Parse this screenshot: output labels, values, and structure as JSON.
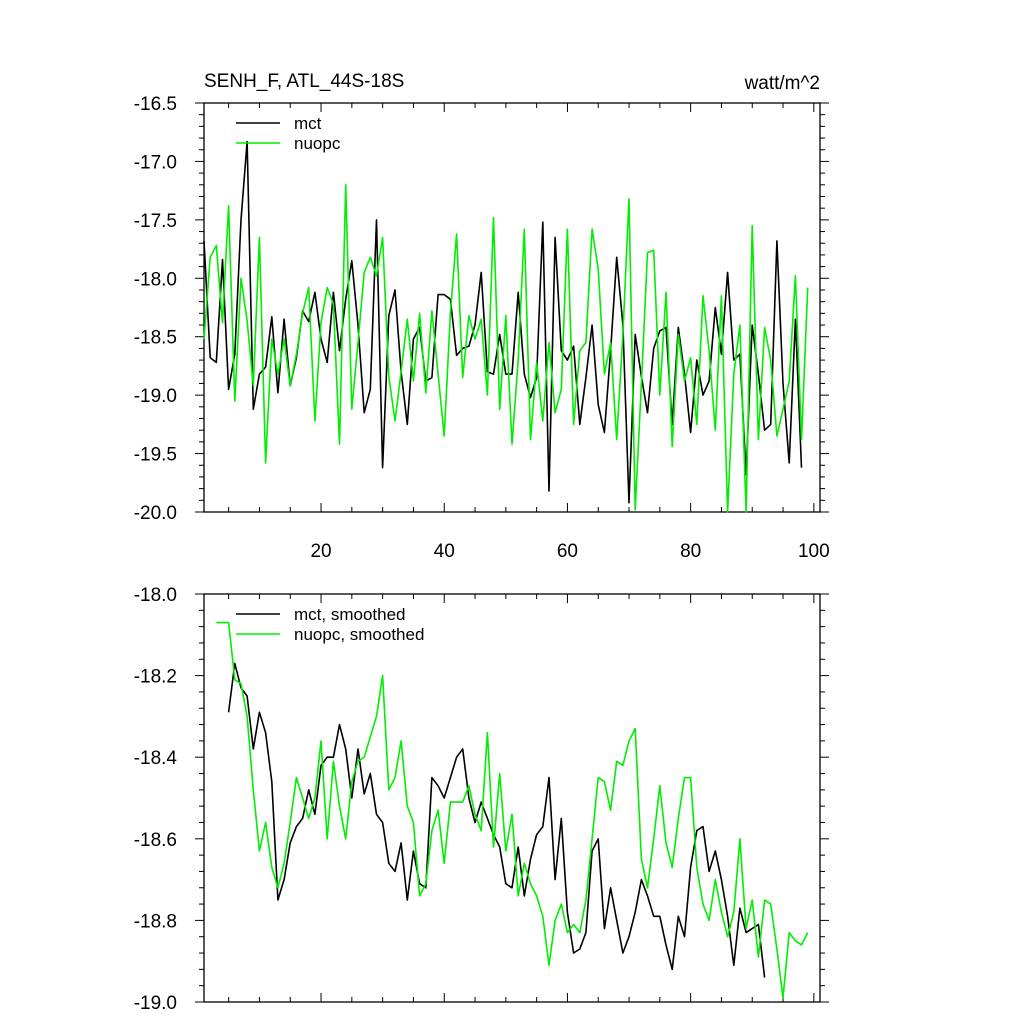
{
  "chart_data": [
    {
      "type": "line",
      "title": "SENH_F, ATL_44S-18S",
      "units": "watt/m^2",
      "xlim": [
        1,
        101
      ],
      "ylim": [
        -20.0,
        -16.5
      ],
      "yticks": [
        "-16.5",
        "-17.0",
        "-17.5",
        "-18.0",
        "-18.5",
        "-19.0",
        "-19.5",
        "-20.0"
      ],
      "xticks": [
        "20",
        "40",
        "60",
        "80",
        "100"
      ],
      "legend_position": "top-left",
      "series": [
        {
          "name": "mct",
          "color": "#000000",
          "x_start": 1,
          "values": [
            -17.68,
            -18.68,
            -18.72,
            -17.84,
            -18.95,
            -18.65,
            -17.5,
            -16.83,
            -19.12,
            -18.82,
            -18.76,
            -18.33,
            -18.98,
            -18.35,
            -18.92,
            -18.68,
            -18.28,
            -18.37,
            -18.12,
            -18.52,
            -18.72,
            -18.12,
            -18.62,
            -18.18,
            -17.85,
            -18.4,
            -19.15,
            -18.95,
            -17.5,
            -19.62,
            -18.32,
            -18.1,
            -18.8,
            -19.25,
            -18.52,
            -18.42,
            -18.88,
            -18.85,
            -18.14,
            -18.14,
            -18.18,
            -18.66,
            -18.6,
            -18.58,
            -18.4,
            -17.95,
            -18.8,
            -18.82,
            -18.48,
            -18.82,
            -18.82,
            -18.12,
            -18.82,
            -19.02,
            -18.85,
            -17.52,
            -19.82,
            -17.65,
            -18.62,
            -18.7,
            -18.58,
            -19.25,
            -18.85,
            -18.4,
            -19.08,
            -19.32,
            -18.62,
            -17.82,
            -18.4,
            -19.92,
            -18.48,
            -18.84,
            -19.15,
            -18.6,
            -18.45,
            -18.42,
            -19.25,
            -18.42,
            -18.82,
            -19.32,
            -18.7,
            -19.0,
            -18.88,
            -18.25,
            -18.65,
            -17.95,
            -18.7,
            -18.65,
            -19.68,
            -18.4,
            -18.82,
            -19.3,
            -19.25,
            -17.68,
            -18.9,
            -19.58,
            -18.35,
            -19.62
          ]
        },
        {
          "name": "nuopc",
          "color": "#00ee00",
          "x_start": 1,
          "values": [
            -18.52,
            -17.82,
            -17.72,
            -18.38,
            -17.38,
            -19.05,
            -18.0,
            -18.36,
            -18.92,
            -17.65,
            -19.58,
            -18.52,
            -18.82,
            -18.52,
            -18.92,
            -18.65,
            -18.3,
            -18.08,
            -19.22,
            -18.38,
            -18.08,
            -18.22,
            -19.42,
            -17.2,
            -19.12,
            -18.55,
            -17.95,
            -17.82,
            -17.98,
            -17.65,
            -18.84,
            -19.22,
            -18.8,
            -18.35,
            -18.88,
            -18.3,
            -18.98,
            -18.28,
            -18.82,
            -19.35,
            -18.3,
            -17.62,
            -18.85,
            -18.32,
            -18.52,
            -18.35,
            -19.0,
            -17.48,
            -19.12,
            -18.32,
            -19.42,
            -18.7,
            -17.58,
            -19.38,
            -18.72,
            -19.22,
            -18.55,
            -19.15,
            -18.95,
            -17.58,
            -19.25,
            -18.62,
            -18.55,
            -17.58,
            -17.92,
            -18.82,
            -18.55,
            -19.38,
            -18.48,
            -17.32,
            -19.98,
            -18.9,
            -17.78,
            -17.76,
            -19.0,
            -18.12,
            -19.44,
            -18.48,
            -18.88,
            -18.68,
            -19.25,
            -18.15,
            -18.62,
            -19.3,
            -18.15,
            -20.0,
            -18.82,
            -18.4,
            -20.0,
            -17.55,
            -19.38,
            -18.42,
            -18.7,
            -19.35,
            -19.12,
            -18.88,
            -17.98,
            -19.38,
            -18.08
          ]
        }
      ]
    },
    {
      "type": "line",
      "title": "",
      "xlim": [
        1,
        101
      ],
      "ylim": [
        -19.0,
        -18.0
      ],
      "yticks": [
        "-18.0",
        "-18.2",
        "-18.4",
        "-18.6",
        "-18.8",
        "-19.0"
      ],
      "legend_position": "top-left",
      "series": [
        {
          "name": "mct, smoothed",
          "color": "#000000",
          "x_start": 5,
          "values": [
            -18.29,
            -18.17,
            -18.23,
            -18.25,
            -18.38,
            -18.29,
            -18.34,
            -18.46,
            -18.75,
            -18.7,
            -18.61,
            -18.57,
            -18.55,
            -18.48,
            -18.54,
            -18.42,
            -18.4,
            -18.4,
            -18.32,
            -18.38,
            -18.5,
            -18.38,
            -18.49,
            -18.44,
            -18.54,
            -18.56,
            -18.66,
            -18.68,
            -18.61,
            -18.75,
            -18.63,
            -18.71,
            -18.72,
            -18.45,
            -18.47,
            -18.5,
            -18.45,
            -18.4,
            -18.38,
            -18.5,
            -18.56,
            -18.51,
            -18.55,
            -18.59,
            -18.62,
            -18.71,
            -18.72,
            -18.62,
            -18.74,
            -18.65,
            -18.59,
            -18.57,
            -18.45,
            -18.7,
            -18.55,
            -18.78,
            -18.88,
            -18.87,
            -18.83,
            -18.63,
            -18.6,
            -18.82,
            -18.72,
            -18.8,
            -18.88,
            -18.84,
            -18.78,
            -18.7,
            -18.74,
            -18.79,
            -18.79,
            -18.86,
            -18.92,
            -18.79,
            -18.84,
            -18.67,
            -18.58,
            -18.57,
            -18.68,
            -18.63,
            -18.7,
            -18.79,
            -18.91,
            -18.77,
            -18.83,
            -18.82,
            -18.81,
            -18.94
          ]
        },
        {
          "name": "nuopc, smoothed",
          "color": "#00ee00",
          "x_start": 3,
          "values": [
            -18.07,
            -18.07,
            -18.07,
            -18.21,
            -18.22,
            -18.3,
            -18.48,
            -18.63,
            -18.56,
            -18.67,
            -18.72,
            -18.66,
            -18.56,
            -18.45,
            -18.5,
            -18.55,
            -18.5,
            -18.36,
            -18.6,
            -18.41,
            -18.52,
            -18.6,
            -18.46,
            -18.41,
            -18.4,
            -18.35,
            -18.3,
            -18.2,
            -18.48,
            -18.45,
            -18.36,
            -18.52,
            -18.56,
            -18.74,
            -18.71,
            -18.58,
            -18.53,
            -18.66,
            -18.51,
            -18.51,
            -18.51,
            -18.47,
            -18.54,
            -18.58,
            -18.34,
            -18.62,
            -18.44,
            -18.63,
            -18.54,
            -18.74,
            -18.66,
            -18.71,
            -18.74,
            -18.79,
            -18.91,
            -18.8,
            -18.76,
            -18.83,
            -18.81,
            -18.83,
            -18.75,
            -18.6,
            -18.45,
            -18.46,
            -18.53,
            -18.41,
            -18.42,
            -18.36,
            -18.33,
            -18.65,
            -18.72,
            -18.6,
            -18.47,
            -18.61,
            -18.67,
            -18.55,
            -18.45,
            -18.45,
            -18.67,
            -18.76,
            -18.8,
            -18.7,
            -18.78,
            -18.84,
            -18.78,
            -18.6,
            -18.82,
            -18.75,
            -18.89,
            -18.75,
            -18.76,
            -18.87,
            -18.99,
            -18.83,
            -18.85,
            -18.86,
            -18.83
          ]
        }
      ]
    }
  ]
}
